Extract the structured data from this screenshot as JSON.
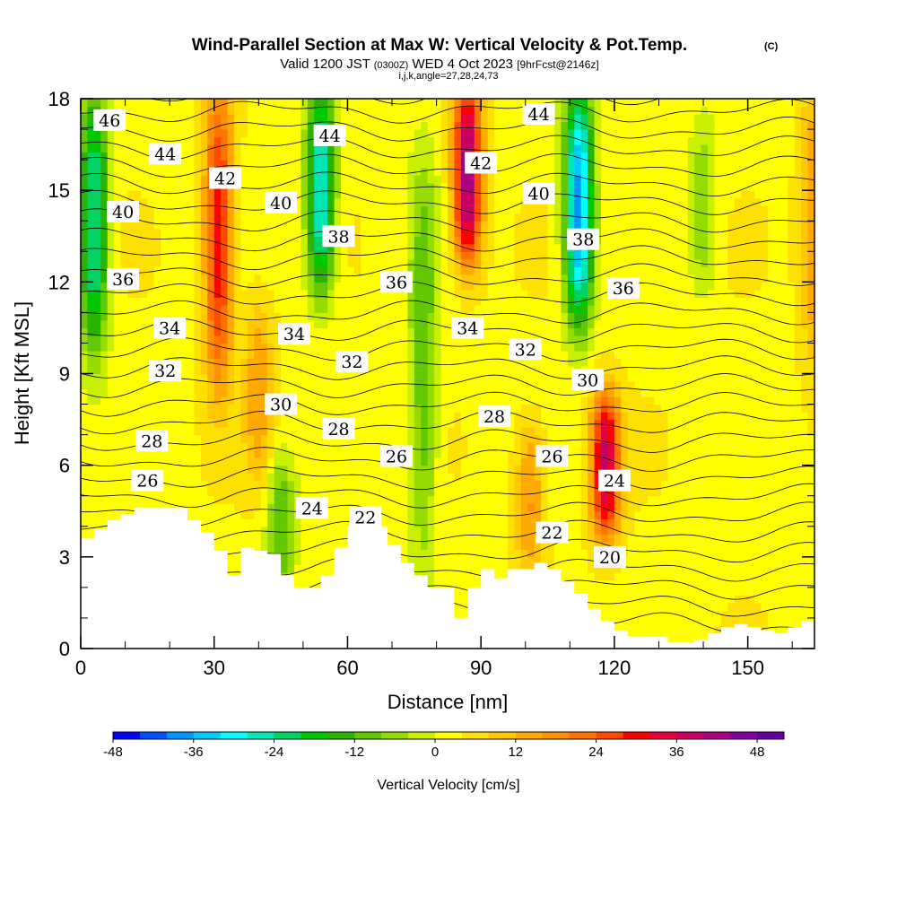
{
  "header": {
    "title": "Wind-Parallel Section at Max W: Vertical Velocity & Pot.Temp.",
    "copyright": "(C)",
    "valid_prefix": "Valid 1200 JST",
    "valid_utc": "(0300Z)",
    "valid_date": "WED 4 Oct 2023",
    "forecast": "[9hrFcst@2146z]",
    "indices": "i,j,k,angle=27,28,24,73"
  },
  "chart_data": {
    "type": "heatmap",
    "xlabel": "Distance [nm]",
    "ylabel": "Height [Kft MSL]",
    "xlim": [
      0,
      165
    ],
    "ylim": [
      0,
      18
    ],
    "x_ticks": [
      "0",
      "30",
      "60",
      "90",
      "120",
      "150"
    ],
    "y_ticks": [
      "0",
      "3",
      "6",
      "9",
      "12",
      "15",
      "18"
    ],
    "colorbar": {
      "label": "Vertical Velocity [cm/s]",
      "range": [
        -48,
        52
      ],
      "step": 4,
      "ticks": [
        "-48",
        "-36",
        "-24",
        "-12",
        "0",
        "12",
        "24",
        "36",
        "48"
      ],
      "colors": [
        "#0000ff",
        "#0050ff",
        "#0096ff",
        "#00c8ff",
        "#00ffff",
        "#00e6b4",
        "#00d264",
        "#00c800",
        "#28b400",
        "#64c800",
        "#96dc00",
        "#c8f000",
        "#ffff00",
        "#ffe100",
        "#ffc800",
        "#ffaa00",
        "#ff9100",
        "#ff7300",
        "#ff4b00",
        "#ff0000",
        "#e6003c",
        "#c80064",
        "#aa0082",
        "#8200a0",
        "#6400a0"
      ]
    },
    "contour_labels": [
      {
        "text": "46",
        "x": 6.5,
        "y": 17.3
      },
      {
        "text": "44",
        "x": 19,
        "y": 16.2
      },
      {
        "text": "42",
        "x": 32.5,
        "y": 15.4
      },
      {
        "text": "40",
        "x": 9.5,
        "y": 14.3
      },
      {
        "text": "40",
        "x": 45,
        "y": 14.6
      },
      {
        "text": "44",
        "x": 56,
        "y": 16.8
      },
      {
        "text": "38",
        "x": 58,
        "y": 13.5
      },
      {
        "text": "42",
        "x": 90,
        "y": 15.9
      },
      {
        "text": "44",
        "x": 103,
        "y": 17.5
      },
      {
        "text": "40",
        "x": 103,
        "y": 14.9
      },
      {
        "text": "38",
        "x": 113,
        "y": 13.4
      },
      {
        "text": "36",
        "x": 9.5,
        "y": 12.1
      },
      {
        "text": "36",
        "x": 71,
        "y": 12.0
      },
      {
        "text": "36",
        "x": 122,
        "y": 11.8
      },
      {
        "text": "34",
        "x": 20,
        "y": 10.5
      },
      {
        "text": "34",
        "x": 48,
        "y": 10.3
      },
      {
        "text": "34",
        "x": 87,
        "y": 10.5
      },
      {
        "text": "32",
        "x": 19,
        "y": 9.1
      },
      {
        "text": "32",
        "x": 61,
        "y": 9.4
      },
      {
        "text": "32",
        "x": 100,
        "y": 9.8
      },
      {
        "text": "30",
        "x": 45,
        "y": 8.0
      },
      {
        "text": "30",
        "x": 114,
        "y": 8.8
      },
      {
        "text": "28",
        "x": 16,
        "y": 6.8
      },
      {
        "text": "28",
        "x": 58,
        "y": 7.2
      },
      {
        "text": "28",
        "x": 93,
        "y": 7.6
      },
      {
        "text": "26",
        "x": 15,
        "y": 5.5
      },
      {
        "text": "26",
        "x": 71,
        "y": 6.3
      },
      {
        "text": "26",
        "x": 106,
        "y": 6.3
      },
      {
        "text": "24",
        "x": 52,
        "y": 4.6
      },
      {
        "text": "24",
        "x": 120,
        "y": 5.5
      },
      {
        "text": "22",
        "x": 64,
        "y": 4.3
      },
      {
        "text": "22",
        "x": 106,
        "y": 3.8
      },
      {
        "text": "20",
        "x": 119,
        "y": 3.0
      }
    ],
    "terrain": {
      "x": [
        0,
        3,
        6,
        9,
        12,
        15,
        18,
        21,
        24,
        27,
        30,
        33,
        36,
        39,
        42,
        45,
        48,
        51,
        54,
        57,
        60,
        63,
        66,
        69,
        72,
        75,
        78,
        81,
        84,
        87,
        90,
        93,
        96,
        99,
        102,
        105,
        108,
        111,
        114,
        117,
        120,
        123,
        126,
        129,
        132,
        135,
        138,
        141,
        144,
        147,
        150,
        153,
        156,
        159,
        162,
        165
      ],
      "height": [
        3.6,
        3.9,
        4.2,
        4.4,
        4.6,
        4.6,
        4.6,
        4.6,
        4.2,
        3.8,
        3.2,
        2.4,
        3.3,
        3.2,
        3.1,
        2.4,
        2.0,
        2.0,
        2.4,
        3.3,
        4.0,
        4.2,
        4.0,
        3.4,
        2.8,
        2.4,
        2.0,
        2.0,
        1.0,
        2.0,
        2.6,
        2.3,
        2.6,
        2.6,
        2.8,
        2.6,
        2.2,
        1.8,
        1.3,
        0.9,
        0.6,
        0.4,
        0.4,
        0.4,
        0.2,
        0.2,
        0.3,
        0.5,
        0.7,
        0.8,
        0.7,
        0.6,
        0.5,
        0.7,
        0.9,
        1.0
      ]
    },
    "updraft_cores": [
      {
        "x": 31,
        "y_range": [
          9,
          18
        ],
        "w": 28
      },
      {
        "x": 87,
        "y_range": [
          13,
          18
        ],
        "w": 40
      },
      {
        "x": 118,
        "y_range": [
          4,
          8
        ],
        "w": 34
      },
      {
        "x": 101,
        "y_range": [
          3,
          7
        ],
        "w": 14
      },
      {
        "x": 40,
        "y_range": [
          6,
          11
        ],
        "w": 12
      },
      {
        "x": 165,
        "y_range": [
          10,
          18
        ],
        "w": 14
      }
    ],
    "downdraft_cores": [
      {
        "x": 3,
        "y_range": [
          10,
          18
        ],
        "w": -28
      },
      {
        "x": 54,
        "y_range": [
          12,
          18
        ],
        "w": -32
      },
      {
        "x": 77,
        "y_range": [
          3,
          16
        ],
        "w": -14
      },
      {
        "x": 112,
        "y_range": [
          11,
          18
        ],
        "w": -40
      },
      {
        "x": 45,
        "y_range": [
          2,
          6
        ],
        "w": -14
      },
      {
        "x": 140,
        "y_range": [
          12,
          17
        ],
        "w": -10
      }
    ]
  }
}
